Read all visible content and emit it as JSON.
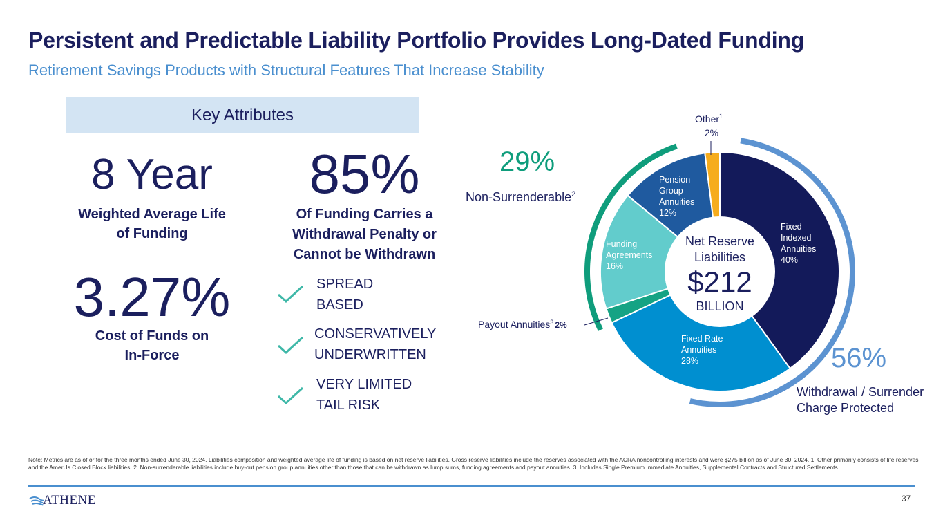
{
  "title": "Persistent and Predictable Liability Portfolio Provides Long-Dated Funding",
  "subtitle": "Retirement Savings Products with Structural Features That Increase Stability",
  "key_attributes": {
    "heading": "Key Attributes",
    "stats": [
      {
        "value": "8 Year",
        "desc_lines": [
          "Weighted Average Life",
          "of Funding"
        ]
      },
      {
        "value": "85%",
        "desc_lines": [
          "Of Funding Carries a",
          "Withdrawal Penalty or",
          "Cannot be Withdrawn"
        ]
      },
      {
        "value": "3.27%",
        "desc_lines": [
          "Cost of Funds on",
          "In-Force"
        ]
      }
    ],
    "checks": [
      {
        "lines": [
          "SPREAD",
          "BASED"
        ]
      },
      {
        "lines": [
          "CONSERVATIVELY",
          "UNDERWRITTEN"
        ]
      },
      {
        "lines": [
          "VERY LIMITED",
          "TAIL RISK"
        ]
      }
    ]
  },
  "chart_data": {
    "type": "pie",
    "center": {
      "line1": "Net Reserve",
      "line2": "Liabilities",
      "value": "$212",
      "unit": "BILLION"
    },
    "slices": [
      {
        "name": "Fixed Indexed Annuities",
        "label_lines": [
          "Fixed",
          "Indexed",
          "Annuities"
        ],
        "pct_text": "40%",
        "value": 40,
        "color": "#131a5a"
      },
      {
        "name": "Fixed Rate Annuities",
        "label_lines": [
          "Fixed Rate",
          "Annuities"
        ],
        "pct_text": "28%",
        "value": 28,
        "color": "#008fd0"
      },
      {
        "name": "Payout Annuities",
        "label_lines": [
          "Payout Annuities"
        ],
        "sup": "3",
        "pct_text": "2%",
        "value": 2,
        "color": "#15a384"
      },
      {
        "name": "Funding Agreements",
        "label_lines": [
          "Funding",
          "Agreements"
        ],
        "pct_text": "16%",
        "value": 16,
        "color": "#62cccc"
      },
      {
        "name": "Pension Group Annuities",
        "label_lines": [
          "Pension",
          "Group",
          "Annuities"
        ],
        "pct_text": "12%",
        "value": 12,
        "color": "#1f5a9f"
      },
      {
        "name": "Other",
        "label_lines": [
          "Other"
        ],
        "sup": "1",
        "pct_text": "2%",
        "value": 2,
        "color": "#f6ac1c"
      }
    ],
    "groups": [
      {
        "pct": "29%",
        "label": "Non-Surrenderable",
        "sup": "2",
        "color": "#0f9d7c"
      },
      {
        "pct": "56%",
        "label_lines": [
          "Withdrawal / Surrender",
          "Charge Protected"
        ],
        "color": "#5c93d1"
      }
    ]
  },
  "footnote": "Note: Metrics are as of or for the three months ended June 30, 2024. Liabilities composition and weighted average life of funding is based on net reserve liabilities. Gross reserve liabilities include the reserves associated with the ACRA noncontrolling interests and were $275 billion as of June 30, 2024. 1. Other primarily consists of life reserves and the AmerUs Closed Block liabilities. 2. Non-surrenderable liabilities include buy-out pension group annuities other than those that can be withdrawn as lump sums, funding agreements and payout annuities. 3. Includes Single Premium Immediate Annuities, Supplemental Contracts and Structured Settlements.",
  "logo_text": "ATHENE",
  "page_number": "37"
}
